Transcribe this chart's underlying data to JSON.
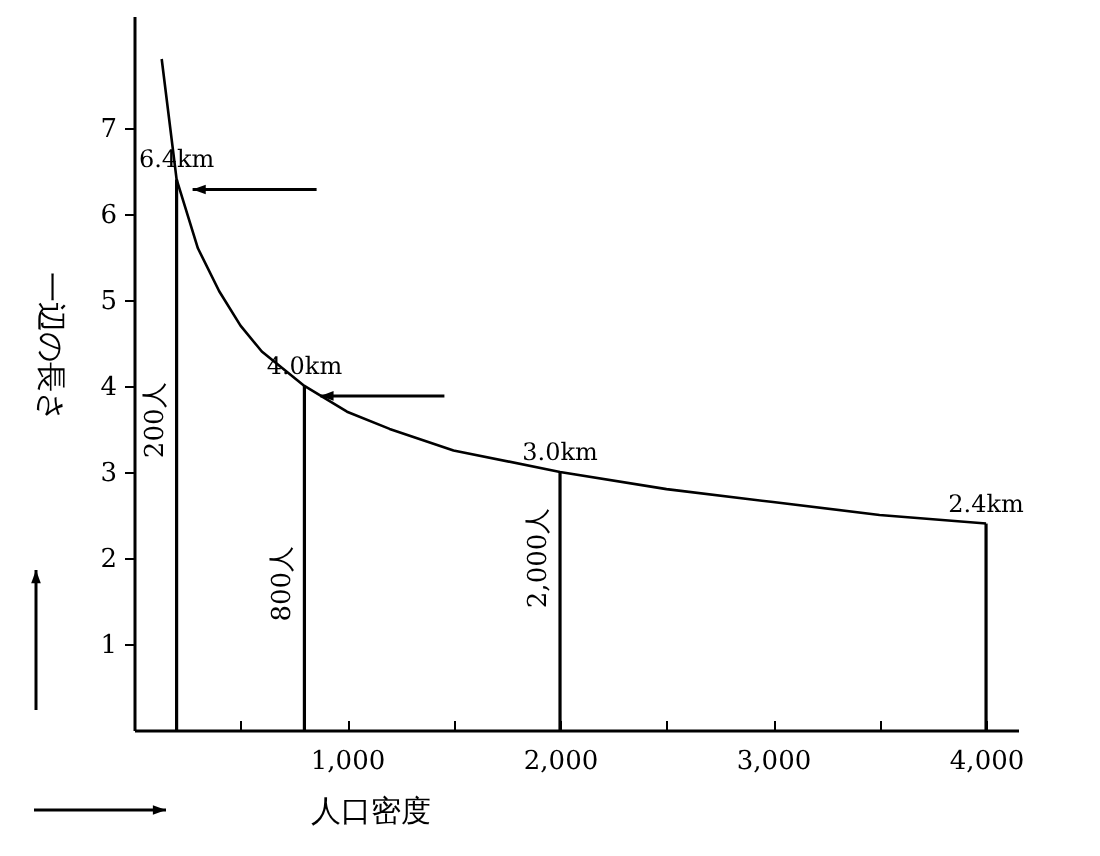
{
  "chart_data": {
    "type": "line",
    "xlabel": "人口密度",
    "ylabel": "一辺の長さ",
    "xlim": [
      0,
      4150
    ],
    "ylim": [
      0,
      8.3
    ],
    "xticks": [
      {
        "value": 500,
        "label": null
      },
      {
        "value": 1000,
        "label": "1,000"
      },
      {
        "value": 1500,
        "label": null
      },
      {
        "value": 2000,
        "label": "2,000"
      },
      {
        "value": 2500,
        "label": null
      },
      {
        "value": 3000,
        "label": "3,000"
      },
      {
        "value": 3500,
        "label": null
      },
      {
        "value": 4000,
        "label": "4,000"
      }
    ],
    "yticks": [
      1,
      2,
      3,
      4,
      5,
      6,
      7
    ],
    "series": [
      {
        "color": "#000000",
        "x": [
          130,
          200,
          300,
          400,
          500,
          600,
          800,
          1000,
          1200,
          1500,
          2000,
          2500,
          3000,
          3500,
          4000
        ],
        "values": [
          7.8,
          6.4,
          5.6,
          5.1,
          4.7,
          4.4,
          4.0,
          3.7,
          3.5,
          3.25,
          3.0,
          2.8,
          2.65,
          2.5,
          2.4
        ]
      },
      {
        "type": "bar",
        "color": "#000000",
        "x": [
          200,
          800,
          2000,
          4000
        ],
        "values": [
          6.4,
          4.0,
          3.0,
          2.4
        ],
        "value_labels": [
          "6.4km",
          "4.0km",
          "3.0km",
          "2.4km"
        ]
      }
    ],
    "annotations": [
      {
        "text": "200人",
        "x": 200,
        "y": 3.6
      },
      {
        "text": "800人",
        "x": 800,
        "y": 1.7
      },
      {
        "text": "2,000人",
        "x": 2000,
        "y": 2.0
      }
    ],
    "grid": false,
    "marker": "none"
  }
}
